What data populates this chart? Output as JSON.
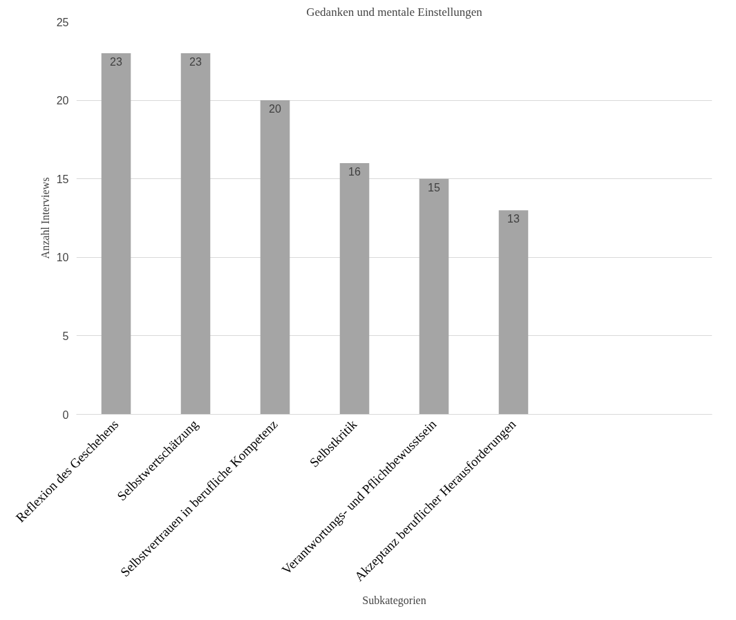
{
  "chart_data": {
    "type": "bar",
    "title": "Gedanken und mentale Einstellungen",
    "xlabel": "Subkategorien",
    "ylabel": "Anzahl Interviews",
    "categories": [
      "Reflexion des Geschehens",
      "Selbstwertschätzung",
      "Selbstvertrauen in berufliche Kompetenz",
      "Selbstkritik",
      "Verantwortungs- und Pflichtbewusstsein",
      "Akzeptanz beruflicher Herausforderungen",
      null,
      null
    ],
    "values": [
      23,
      23,
      20,
      16,
      15,
      13,
      null,
      null
    ],
    "color": "#a5a5a5",
    "ylim": [
      0,
      25
    ],
    "yticks": [
      0,
      5,
      10,
      15,
      20,
      25
    ],
    "grid": "y",
    "data_labels": true
  }
}
